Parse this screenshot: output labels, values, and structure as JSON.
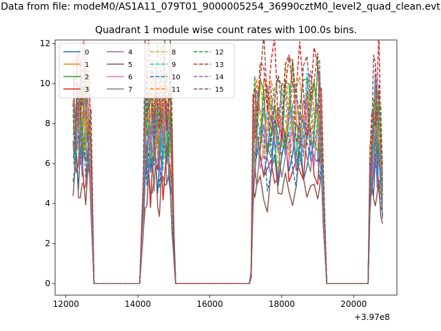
{
  "chart_data": {
    "type": "line",
    "suptitle": "Data from file: modeM0/AS1A11_079T01_9000005254_36990cztM0_level2_quad_clean.evt",
    "title": "Quadrant 1 module wise count rates with 100.0s bins.",
    "xlabel": "",
    "ylabel": "",
    "x_offset_label": "+3.97e8",
    "xlim": [
      11700,
      21200
    ],
    "ylim": [
      -0.58,
      12.18
    ],
    "xticks": [
      12000,
      14000,
      16000,
      18000,
      20000
    ],
    "xtick_labels": [
      "12000",
      "14000",
      "16000",
      "18000",
      "20000"
    ],
    "yticks": [
      0,
      2,
      4,
      6,
      8,
      10,
      12
    ],
    "ytick_labels": [
      "0",
      "2",
      "4",
      "6",
      "8",
      "10",
      "12"
    ],
    "grid": false,
    "legend_position": "upper-left",
    "legend_columns": 4,
    "x": [
      12200,
      12250,
      12300,
      12350,
      12400,
      12450,
      12500,
      12550,
      12600,
      12650,
      12700,
      12780,
      12900,
      13200,
      13600,
      14000,
      14050,
      14150,
      14200,
      14250,
      14300,
      14350,
      14400,
      14450,
      14500,
      14550,
      14600,
      14650,
      14700,
      14750,
      14800,
      14850,
      14900,
      14950,
      15000,
      15050,
      15200,
      15600,
      16000,
      16400,
      16800,
      17100,
      17150,
      17200,
      17250,
      17300,
      17400,
      17500,
      17600,
      17700,
      17800,
      17900,
      18000,
      18100,
      18200,
      18300,
      18400,
      18500,
      18600,
      18700,
      18800,
      18900,
      19000,
      19050,
      19100,
      19150,
      19250,
      19500,
      19800,
      20100,
      20400,
      20450,
      20500,
      20550,
      20600,
      20650,
      20700,
      20750,
      20800
    ],
    "base_profile": [
      0.96,
      0.9,
      0.99,
      0.94,
      1.0,
      0.92,
      0.97,
      0.88,
      0.95,
      0.9,
      0.7,
      0,
      0,
      0,
      0,
      0,
      0,
      0.45,
      0.97,
      0.88,
      0.96,
      0.84,
      0.93,
      0.87,
      0.98,
      0.91,
      0.86,
      0.95,
      0.9,
      0.99,
      0.92,
      0.88,
      0.96,
      0.7,
      0.25,
      0,
      0,
      0,
      0,
      0,
      0,
      0,
      0.05,
      0.8,
      0.9,
      0.93,
      0.95,
      0.97,
      0.88,
      0.94,
      0.99,
      0.9,
      0.96,
      1.0,
      0.93,
      0.97,
      0.91,
      0.98,
      0.95,
      1.0,
      0.96,
      0.92,
      0.97,
      0.99,
      0.85,
      0.55,
      0,
      0,
      0,
      0,
      0,
      0.6,
      0.75,
      0.9,
      0.98,
      0.86,
      0.94,
      0.72,
      0.55
    ],
    "series": [
      {
        "name": "0",
        "level": 6.9,
        "style": "solid",
        "color": "#1f77b4"
      },
      {
        "name": "1",
        "level": 8.9,
        "style": "solid",
        "color": "#ff7f0e"
      },
      {
        "name": "2",
        "level": 8.5,
        "style": "solid",
        "color": "#2ca02c"
      },
      {
        "name": "3",
        "level": 6.4,
        "style": "solid",
        "color": "#d62728"
      },
      {
        "name": "4",
        "level": 7.6,
        "style": "solid",
        "color": "#9467bd"
      },
      {
        "name": "5",
        "level": 5.2,
        "style": "solid",
        "color": "#8c564b"
      },
      {
        "name": "6",
        "level": 8.1,
        "style": "solid",
        "color": "#e377c2"
      },
      {
        "name": "7",
        "level": 7.3,
        "style": "solid",
        "color": "#7f7f7f"
      },
      {
        "name": "8",
        "level": 8.8,
        "style": "dashed",
        "color": "#bcbd22"
      },
      {
        "name": "9",
        "level": 8.3,
        "style": "dashed",
        "color": "#17becf"
      },
      {
        "name": "10",
        "level": 7.1,
        "style": "dashed",
        "color": "#1f77b4"
      },
      {
        "name": "11",
        "level": 9.1,
        "style": "dashed",
        "color": "#ff7f0e"
      },
      {
        "name": "12",
        "level": 9.6,
        "style": "dashed",
        "color": "#2ca02c"
      },
      {
        "name": "13",
        "level": 10.5,
        "style": "dashed",
        "color": "#d62728"
      },
      {
        "name": "14",
        "level": 9.3,
        "style": "dashed",
        "color": "#9467bd"
      },
      {
        "name": "15",
        "level": 10.2,
        "style": "dashed",
        "color": "#8c564b"
      }
    ]
  }
}
